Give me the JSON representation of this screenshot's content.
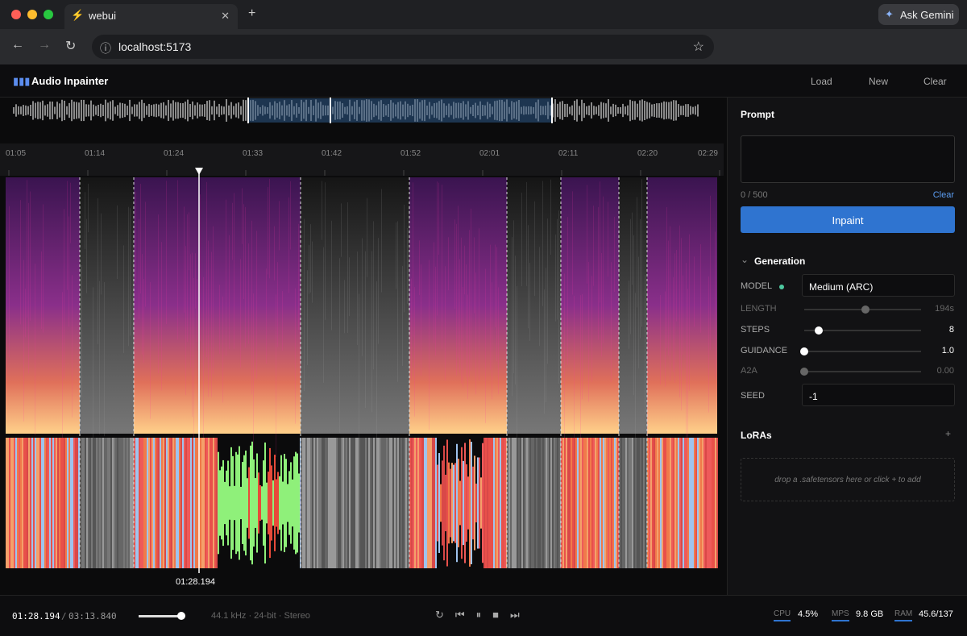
{
  "browser": {
    "tab_title": "webui",
    "ask_button": "Ask Gemini",
    "url": "localhost:5173"
  },
  "app": {
    "title": "Audio Inpainter",
    "actions": [
      "Load",
      "New",
      "Clear"
    ]
  },
  "timeline": {
    "ticks": [
      "01:05",
      "01:14",
      "01:24",
      "01:33",
      "01:42",
      "01:52",
      "02:01",
      "02:11",
      "02:20",
      "02:29"
    ],
    "playhead_label": "01:28.194"
  },
  "panel": {
    "prompt_label": "Prompt",
    "char_count": "0 / 500",
    "clear": "Clear",
    "inpaint": "Inpaint",
    "generation": "Generation",
    "params": [
      {
        "label": "MODEL",
        "value": "Medium (ARC)"
      },
      {
        "label": "LENGTH",
        "value": "194s"
      },
      {
        "label": "STEPS",
        "value": "8"
      },
      {
        "label": "GUIDANCE",
        "value": "1.0"
      },
      {
        "label": "A2A",
        "value": "0.00"
      },
      {
        "label": "SEED",
        "value": "-1"
      }
    ],
    "loras": "LoRAs",
    "add": "+",
    "drop_hint": "drop a .safetensors here or click + to add"
  },
  "footer": {
    "position": "01:28.194",
    "separator": "/",
    "duration": "03:13.840",
    "format": "44.1 kHz · 24-bit · Stereo",
    "stats": [
      {
        "label": "CPU",
        "value": "4.5%"
      },
      {
        "label": "MPS",
        "value": "9.8 GB"
      },
      {
        "label": "RAM",
        "value": "45.6/137"
      }
    ]
  }
}
